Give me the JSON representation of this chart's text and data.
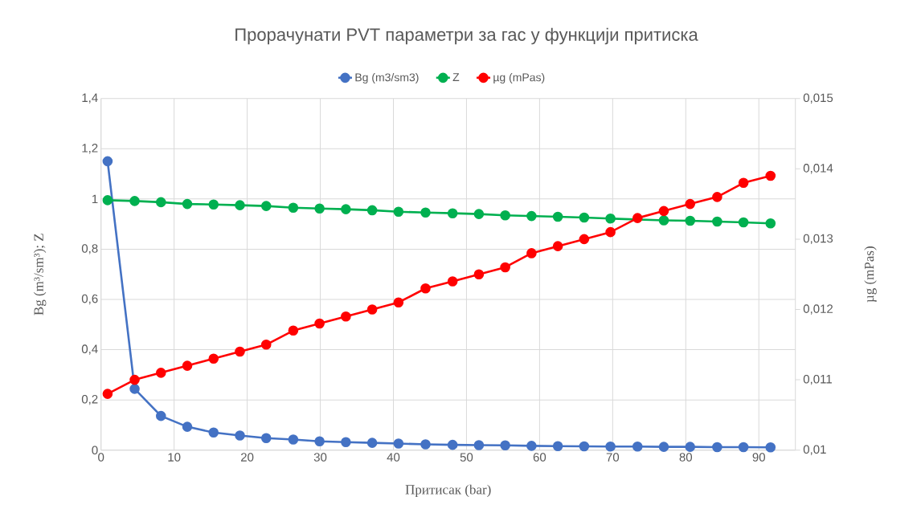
{
  "chart_data": {
    "type": "line",
    "title": "Прорачунати PVT параметри за гас у функцији притиска",
    "xlabel": "Притисак (bar)",
    "ylabel": "Bg (m³/sm³); Z",
    "y2label": "µg (mPas)",
    "x": [
      0.9,
      4.6,
      8.2,
      11.8,
      15.4,
      19,
      22.6,
      26.3,
      29.9,
      33.5,
      37.1,
      40.7,
      44.4,
      48.1,
      51.7,
      55.3,
      58.9,
      62.5,
      66.1,
      69.7,
      73.4,
      77,
      80.6,
      84.3,
      87.9,
      91.6
    ],
    "series": [
      {
        "name": "Bg (m3/sm3)",
        "color": "#4472c4",
        "values": [
          1.15,
          0.244,
          0.136,
          0.093,
          0.07,
          0.058,
          0.048,
          0.042,
          0.035,
          0.032,
          0.029,
          0.026,
          0.023,
          0.021,
          0.02,
          0.019,
          0.017,
          0.016,
          0.015,
          0.014,
          0.014,
          0.013,
          0.013,
          0.012,
          0.012,
          0.011
        ]
      },
      {
        "name": "Z",
        "color": "#00b050",
        "values": [
          0.995,
          0.992,
          0.987,
          0.98,
          0.978,
          0.975,
          0.972,
          0.965,
          0.962,
          0.959,
          0.955,
          0.949,
          0.946,
          0.943,
          0.94,
          0.935,
          0.932,
          0.929,
          0.926,
          0.922,
          null,
          0.915,
          0.913,
          0.91,
          0.907,
          0.903
        ]
      },
      {
        "name": "µg (mPas)",
        "color": "#ff0000",
        "axis": "y2",
        "values": [
          0.0108,
          0.011,
          0.0111,
          0.0112,
          0.0113,
          0.0114,
          0.0115,
          0.0117,
          0.0118,
          0.0119,
          0.012,
          0.0121,
          0.0123,
          0.0124,
          0.0125,
          0.0126,
          0.0128,
          0.0129,
          0.013,
          0.0131,
          0.0133,
          0.0134,
          0.0135,
          0.0136,
          0.0138,
          0.0139
        ]
      }
    ],
    "xlim": [
      0,
      95
    ],
    "xticks": [
      0,
      10,
      20,
      30,
      40,
      50,
      60,
      70,
      80,
      90
    ],
    "ylim": [
      0,
      1.4
    ],
    "yticks": [
      {
        "value": 0,
        "label": "0"
      },
      {
        "value": 0.2,
        "label": "0,2"
      },
      {
        "value": 0.4,
        "label": "0,4"
      },
      {
        "value": 0.6,
        "label": "0,6"
      },
      {
        "value": 0.8,
        "label": "0,8"
      },
      {
        "value": 1,
        "label": "1"
      },
      {
        "value": 1.2,
        "label": "1,2"
      },
      {
        "value": 1.4,
        "label": "1,4"
      }
    ],
    "y2lim": [
      0.01,
      0.015
    ],
    "y2ticks": [
      {
        "value": 0.01,
        "label": "0,01"
      },
      {
        "value": 0.011,
        "label": "0,011"
      },
      {
        "value": 0.012,
        "label": "0,012"
      },
      {
        "value": 0.013,
        "label": "0,013"
      },
      {
        "value": 0.014,
        "label": "0,014"
      },
      {
        "value": 0.015,
        "label": "0,015"
      }
    ],
    "grid": true,
    "legend": "top",
    "marker": "circle",
    "line_style": "solid"
  }
}
